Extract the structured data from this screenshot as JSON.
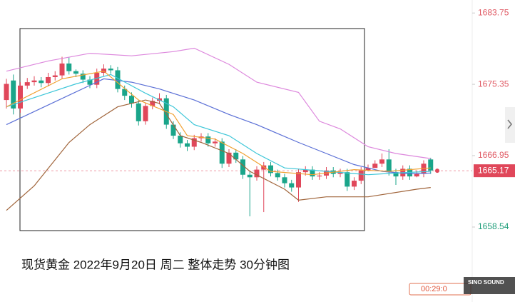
{
  "chart_data": {
    "type": "candlestick",
    "caption": "现货黄金 2022年9月20日  周二 整体走势  30分钟图",
    "timer": "00:29:0",
    "watermark": "SINO SOUND",
    "ylim": [
      1657.53,
      1685.28
    ],
    "yticks": [
      1683.75,
      1675.35,
      1666.95,
      1658.54
    ],
    "ytick_colors": [
      "#e05a64",
      "#e05a64",
      "#e05a64",
      "#1f9e7a"
    ],
    "last_price": 1665.17,
    "last_price_color": "#e0475a",
    "up_color": "#e0475a",
    "down_color": "#1aa58a",
    "categories": [
      null,
      null,
      null,
      null,
      null,
      null,
      null,
      null,
      null,
      null,
      null,
      null,
      null,
      null,
      null,
      null,
      null,
      null,
      null,
      null,
      null,
      null,
      null,
      null,
      null,
      null,
      null,
      null,
      null,
      null,
      null,
      null,
      null,
      null,
      null,
      null,
      null,
      null,
      null,
      null,
      null,
      null,
      null,
      null,
      null,
      null,
      null,
      null,
      null,
      null,
      null,
      null,
      null,
      null,
      null,
      null,
      null,
      null,
      null,
      null,
      null,
      null
    ],
    "open": [
      1673.5,
      1675.8,
      1672.5,
      1675.2,
      1675.6,
      1675.8,
      1675.5,
      1676.2,
      1676.4,
      1677.8,
      1676.9,
      1676.6,
      1675.9,
      1675.3,
      1676.7,
      1677.2,
      1677.0,
      1674.8,
      1674.0,
      1673.1,
      1671.0,
      1672.8,
      1673.4,
      1673.7,
      1670.6,
      1669.3,
      1668.4,
      1668.0,
      1669.0,
      1669.2,
      1668.4,
      1668.6,
      1666.0,
      1667.3,
      1666.5,
      1664.7,
      1664.4,
      1665.3,
      1665.8,
      1664.9,
      1664.4,
      1663.7,
      1663.2,
      1665.0,
      1665.3,
      1664.5,
      1664.6,
      1665.2,
      1664.8,
      1665.0,
      1663.3,
      1664.0,
      1665.2,
      1665.5,
      1666.0,
      1666.5,
      1665.0,
      1664.5,
      1665.4,
      1664.5,
      1664.8,
      1666.5
    ],
    "close": [
      1675.4,
      1672.5,
      1675.2,
      1675.6,
      1675.8,
      1675.5,
      1676.2,
      1676.4,
      1677.8,
      1676.9,
      1676.6,
      1675.9,
      1675.3,
      1676.7,
      1677.2,
      1677.0,
      1674.8,
      1674.0,
      1673.1,
      1671.0,
      1672.8,
      1673.4,
      1673.7,
      1670.6,
      1669.3,
      1668.4,
      1668.0,
      1669.0,
      1669.2,
      1668.4,
      1668.6,
      1666.0,
      1667.3,
      1666.5,
      1664.7,
      1664.4,
      1665.3,
      1665.8,
      1664.9,
      1664.4,
      1663.7,
      1663.2,
      1665.0,
      1665.3,
      1664.5,
      1664.6,
      1665.2,
      1664.8,
      1665.0,
      1663.3,
      1664.0,
      1665.2,
      1665.5,
      1666.0,
      1666.5,
      1665.0,
      1664.5,
      1665.4,
      1664.5,
      1664.8,
      1666.0,
      1665.2
    ],
    "high": [
      1676.0,
      1676.5,
      1675.6,
      1676.1,
      1676.3,
      1676.2,
      1676.7,
      1676.9,
      1678.6,
      1678.5,
      1677.1,
      1677.0,
      1676.3,
      1677.2,
      1677.7,
      1677.6,
      1677.4,
      1675.2,
      1674.4,
      1673.5,
      1673.2,
      1673.8,
      1674.3,
      1674.1,
      1671.0,
      1669.7,
      1668.8,
      1669.4,
      1669.6,
      1669.6,
      1669.0,
      1669.0,
      1667.7,
      1667.7,
      1666.9,
      1665.1,
      1665.7,
      1666.2,
      1666.2,
      1665.3,
      1664.8,
      1664.1,
      1665.4,
      1665.7,
      1665.7,
      1665.0,
      1665.6,
      1665.6,
      1665.4,
      1665.4,
      1664.4,
      1665.6,
      1665.9,
      1666.4,
      1667.2,
      1667.7,
      1665.4,
      1665.8,
      1665.8,
      1665.2,
      1666.4,
      1666.7
    ],
    "low": [
      1672.5,
      1671.8,
      1672.0,
      1674.8,
      1675.2,
      1675.0,
      1675.1,
      1675.8,
      1676.0,
      1676.5,
      1676.2,
      1675.5,
      1674.9,
      1674.9,
      1676.3,
      1676.6,
      1674.4,
      1673.5,
      1672.6,
      1670.5,
      1670.6,
      1672.4,
      1673.0,
      1670.1,
      1668.9,
      1667.9,
      1667.5,
      1667.6,
      1668.6,
      1668.0,
      1668.0,
      1665.5,
      1665.6,
      1666.1,
      1664.2,
      1659.8,
      1664.0,
      1660.3,
      1664.5,
      1664.0,
      1663.2,
      1662.7,
      1661.5,
      1664.6,
      1664.1,
      1664.1,
      1664.2,
      1664.4,
      1664.4,
      1662.8,
      1662.9,
      1663.6,
      1665.1,
      1665.6,
      1665.6,
      1664.6,
      1663.5,
      1664.1,
      1664.1,
      1664.4,
      1664.4,
      1664.8
    ],
    "series": [
      {
        "color": "#dd88dd",
        "x": [
          0,
          6,
          12,
          18,
          24,
          27,
          32,
          36,
          42,
          45,
          48,
          52,
          56,
          61
        ],
        "values": [
          1676.9,
          1678.1,
          1679.0,
          1678.7,
          1679.2,
          1679.6,
          1677.7,
          1675.6,
          1674.4,
          1671.0,
          1670.1,
          1668.0,
          1667.2,
          1666.6
        ]
      },
      {
        "color": "#5a6fd6",
        "x": [
          0,
          14,
          18,
          22,
          27,
          32,
          36,
          42,
          46,
          50,
          52,
          54,
          58,
          61
        ],
        "values": [
          1670.6,
          1676.0,
          1675.6,
          1674.8,
          1673.5,
          1671.8,
          1670.6,
          1668.5,
          1667.2,
          1665.9,
          1665.5,
          1665.1,
          1664.8,
          1664.9
        ]
      },
      {
        "color": "#a0643a",
        "x": [
          0,
          4,
          9,
          12,
          16,
          20,
          22,
          25,
          28,
          32,
          35,
          40,
          42,
          46,
          52,
          59,
          61
        ],
        "values": [
          1660.5,
          1663.4,
          1668.5,
          1670.6,
          1672.7,
          1673.5,
          1673.1,
          1669.3,
          1668.5,
          1667.2,
          1665.1,
          1663.0,
          1661.7,
          1662.1,
          1662.1,
          1663.0,
          1663.2
        ]
      },
      {
        "color": "#3cc6d8",
        "x": [
          0,
          10,
          15,
          20,
          24,
          27,
          32,
          36,
          40,
          46,
          52,
          56,
          61
        ],
        "values": [
          1672.7,
          1675.4,
          1676.5,
          1674.3,
          1672.7,
          1670.6,
          1669.3,
          1667.2,
          1665.5,
          1665.1,
          1664.7,
          1664.9,
          1665.1
        ]
      },
      {
        "color": "#f0a030",
        "x": [
          0,
          8,
          14,
          19,
          24,
          26,
          30,
          34,
          38,
          44,
          50,
          55,
          61
        ],
        "values": [
          1672.7,
          1676.0,
          1676.9,
          1673.5,
          1671.8,
          1669.3,
          1668.9,
          1667.2,
          1665.1,
          1664.7,
          1665.3,
          1665.1,
          1665.5
        ]
      }
    ]
  }
}
